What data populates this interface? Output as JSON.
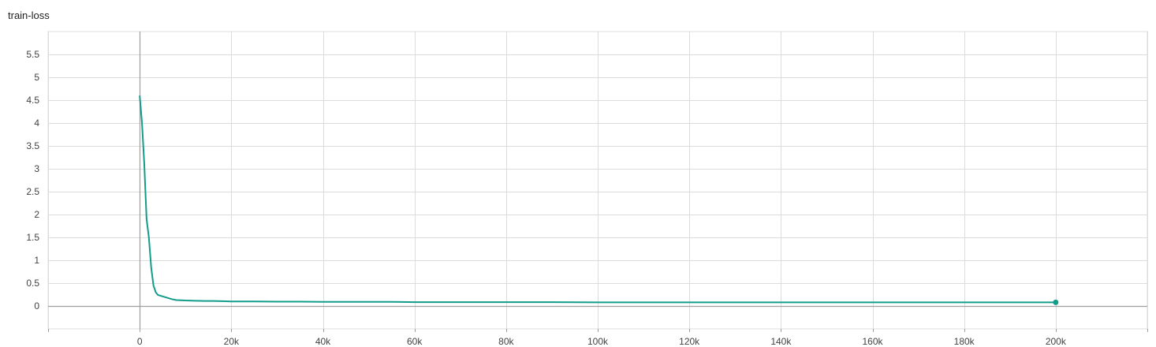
{
  "chart_data": {
    "type": "line",
    "title": "train-loss",
    "xlabel": "",
    "ylabel": "",
    "xlim": [
      -20000,
      220000
    ],
    "ylim": [
      -0.5,
      6.0
    ],
    "grid": true,
    "x_ticks": [
      0,
      20000,
      40000,
      60000,
      80000,
      100000,
      120000,
      140000,
      160000,
      180000,
      200000
    ],
    "x_tick_labels": [
      "0",
      "20k",
      "40k",
      "60k",
      "80k",
      "100k",
      "120k",
      "140k",
      "160k",
      "180k",
      "200k"
    ],
    "y_ticks": [
      0,
      0.5,
      1,
      1.5,
      2,
      2.5,
      3,
      3.5,
      4,
      4.5,
      5,
      5.5
    ],
    "y_tick_labels": [
      "0",
      "0.5",
      "1",
      "1.5",
      "2",
      "2.5",
      "3",
      "3.5",
      "4",
      "4.5",
      "5",
      "5.5"
    ],
    "series": [
      {
        "name": "train-loss",
        "color": "#129c8a",
        "x": [
          0,
          500,
          1000,
          1500,
          2000,
          2500,
          3000,
          3500,
          4000,
          5000,
          6000,
          7000,
          8000,
          10000,
          12000,
          14000,
          16000,
          18000,
          20000,
          25000,
          30000,
          35000,
          40000,
          45000,
          50000,
          55000,
          60000,
          70000,
          80000,
          90000,
          100000,
          110000,
          120000,
          130000,
          140000,
          150000,
          160000,
          170000,
          180000,
          190000,
          200000
        ],
        "y": [
          4.6,
          4.0,
          3.1,
          1.9,
          1.5,
          0.85,
          0.45,
          0.3,
          0.24,
          0.21,
          0.18,
          0.15,
          0.13,
          0.12,
          0.115,
          0.11,
          0.11,
          0.105,
          0.1,
          0.1,
          0.095,
          0.095,
          0.09,
          0.09,
          0.09,
          0.09,
          0.085,
          0.085,
          0.085,
          0.085,
          0.08,
          0.08,
          0.08,
          0.08,
          0.08,
          0.08,
          0.08,
          0.08,
          0.08,
          0.08,
          0.08
        ]
      }
    ]
  }
}
